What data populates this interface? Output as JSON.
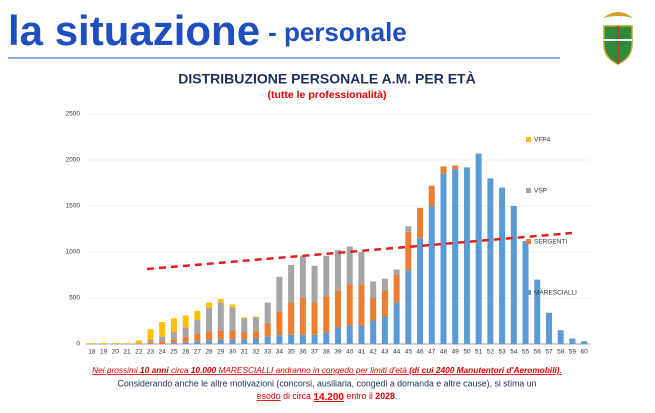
{
  "header": {
    "title": "la situazione",
    "subtitle": "- personale"
  },
  "chart_data": {
    "type": "stacked_bar",
    "title": "DISTRIBUZIONE PERSONALE A.M. PER ETÀ",
    "subtitle": "(tutte le professionalità)",
    "categories": [
      "18",
      "19",
      "20",
      "21",
      "22",
      "23",
      "24",
      "25",
      "26",
      "27",
      "28",
      "29",
      "30",
      "31",
      "32",
      "33",
      "34",
      "35",
      "36",
      "37",
      "38",
      "39",
      "40",
      "41",
      "42",
      "43",
      "44",
      "45",
      "46",
      "47",
      "48",
      "49",
      "50",
      "51",
      "52",
      "53",
      "54",
      "55",
      "56",
      "57",
      "58",
      "59",
      "60"
    ],
    "series": [
      {
        "name": "MARESCIALLI",
        "color": "#5b9bd5",
        "values": [
          0,
          0,
          0,
          0,
          0,
          0,
          0,
          10,
          20,
          30,
          40,
          50,
          50,
          50,
          60,
          80,
          100,
          100,
          100,
          100,
          120,
          180,
          200,
          200,
          250,
          300,
          450,
          800,
          1150,
          1500,
          1850,
          1900,
          1920,
          2070,
          1800,
          1700,
          1500,
          1120,
          700,
          340,
          150,
          60,
          30
        ]
      },
      {
        "name": "SERGENTI",
        "color": "#ed7d31",
        "values": [
          0,
          0,
          0,
          0,
          0,
          20,
          30,
          40,
          60,
          80,
          100,
          100,
          100,
          80,
          80,
          150,
          250,
          350,
          400,
          350,
          400,
          400,
          450,
          450,
          250,
          280,
          300,
          420,
          330,
          220,
          80,
          40,
          0,
          0,
          0,
          0,
          0,
          0,
          0,
          0,
          0,
          0,
          0
        ]
      },
      {
        "name": "VSP",
        "color": "#a5a5a5",
        "values": [
          0,
          0,
          0,
          0,
          10,
          30,
          50,
          80,
          100,
          150,
          250,
          300,
          250,
          150,
          150,
          220,
          380,
          410,
          460,
          400,
          440,
          440,
          410,
          350,
          180,
          130,
          60,
          60,
          0,
          0,
          0,
          0,
          0,
          0,
          0,
          0,
          0,
          0,
          0,
          0,
          0,
          0,
          0
        ]
      },
      {
        "name": "VFP4",
        "color": "#ffc000",
        "values": [
          10,
          10,
          10,
          10,
          30,
          110,
          160,
          150,
          130,
          100,
          60,
          40,
          30,
          10,
          10,
          0,
          0,
          0,
          0,
          0,
          0,
          0,
          0,
          0,
          0,
          0,
          0,
          0,
          0,
          0,
          0,
          0,
          0,
          0,
          0,
          0,
          0,
          0,
          0,
          0,
          0,
          0,
          0
        ]
      }
    ],
    "ylim": [
      0,
      2500
    ],
    "yticks": [
      0,
      500,
      1000,
      1500,
      2000,
      2500
    ],
    "grid": true
  },
  "footer": {
    "line1": [
      "Nei prossimi ",
      "10 anni",
      " circa ",
      "10.000",
      " MARESCIALLI andranno in congedo per limiti d'età ",
      "(di cui 2400 Manutentori d'Aeromobili)",
      "."
    ],
    "line2": "Considerando anche le altre motivazioni (concorsi, ausiliaria, congedi a domanda e altre cause), si stima un",
    "line3": [
      "esodo",
      " di circa ",
      "14.200",
      " entro il ",
      "2028",
      "."
    ]
  }
}
